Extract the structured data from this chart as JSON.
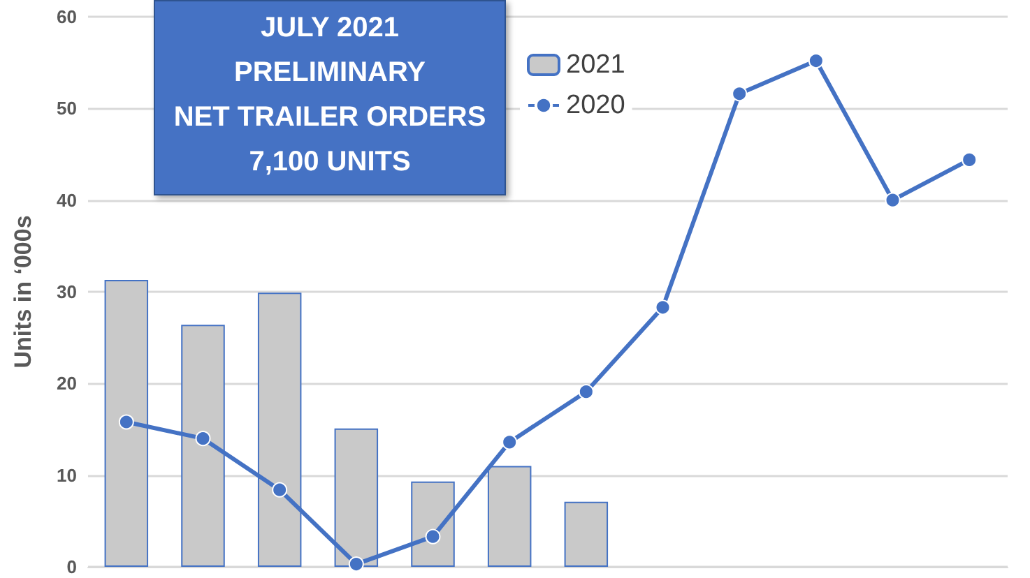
{
  "chart_data": {
    "type": "bar",
    "title": "JULY 2021\nPRELIMINARY\nNET TRAILER ORDERS\n7,100 UNITS",
    "ylabel": "Units in ‘000s",
    "categories": [
      null,
      null,
      null,
      null,
      null,
      null,
      null,
      null,
      null,
      null,
      null,
      null
    ],
    "series": [
      {
        "name": "2021",
        "color": "#c9c9c9",
        "values": [
          31.3,
          26.4,
          29.9,
          15.1,
          9.3,
          11.0,
          7.1,
          null,
          null,
          null,
          null,
          null
        ]
      },
      {
        "name": "2020",
        "type": "line",
        "color": "#4472c4",
        "marker": "circle",
        "values": [
          15.8,
          14.0,
          8.4,
          0.3,
          3.3,
          13.6,
          19.1,
          28.3,
          51.6,
          55.2,
          40.0,
          44.4
        ]
      }
    ],
    "ylim": [
      0,
      60
    ],
    "yticks": [
      0,
      10,
      20,
      30,
      40,
      50,
      60
    ],
    "grid": "y",
    "legend": "top"
  }
}
